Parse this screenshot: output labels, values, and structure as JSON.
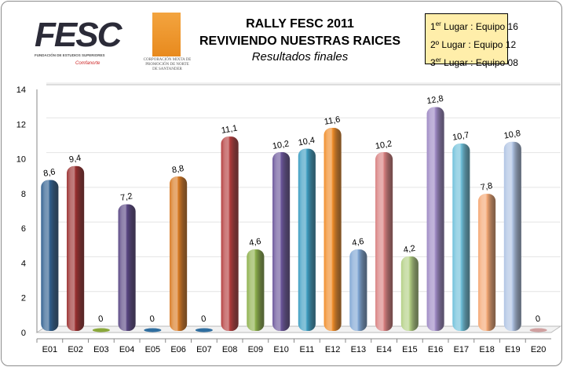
{
  "logos": {
    "fesc": "FESC",
    "fesc_subtitle": "FUNDACIÓN DE ESTUDIOS SUPERIORES",
    "fesc_partner": "Comfanorte",
    "corp": "CORPORACIÓN MIXTA DE PROMOCIÓN DE NORTE DE SANTANDER"
  },
  "legend": [
    {
      "num": "1",
      "sup": "er",
      "text": " Lugar :  Equipo 16"
    },
    {
      "num": "2º",
      "sup": "",
      "text": " Lugar :  Equipo 12"
    },
    {
      "num": "3",
      "sup": "er",
      "text": " Lugar :  Equipo 08"
    }
  ],
  "chart_data": {
    "type": "bar",
    "title": "RALLY FESC 2011",
    "subtitle": "REVIVIENDO NUESTRAS RAICES",
    "subtitle2": "Resultados finales",
    "categories": [
      "E01",
      "E02",
      "E03",
      "E04",
      "E05",
      "E06",
      "E07",
      "E08",
      "E09",
      "E10",
      "E11",
      "E12",
      "E13",
      "E14",
      "E15",
      "E16",
      "E17",
      "E18",
      "E19",
      "E20"
    ],
    "values": [
      8.6,
      9.4,
      0,
      7.2,
      0,
      8.8,
      0,
      11.1,
      4.6,
      10.2,
      10.4,
      11.6,
      4.6,
      10.2,
      4.2,
      12.8,
      10.7,
      7.8,
      10.8,
      0
    ],
    "colors": [
      "#2f5f8f",
      "#9b2f2f",
      "#8aa83a",
      "#5a4784",
      "#2f6ea0",
      "#d97a23",
      "#2f6ea0",
      "#b43c3c",
      "#8db04b",
      "#6a559a",
      "#3d9ec2",
      "#f08c28",
      "#7fa6d4",
      "#d98080",
      "#b3d084",
      "#9d88c4",
      "#6ec0da",
      "#f5a874",
      "#afc3e3",
      "#d0a0a0"
    ],
    "yticks": [
      0,
      2,
      4,
      6,
      8,
      10,
      12,
      14
    ],
    "ylim": [
      0,
      14
    ],
    "grid": true
  }
}
